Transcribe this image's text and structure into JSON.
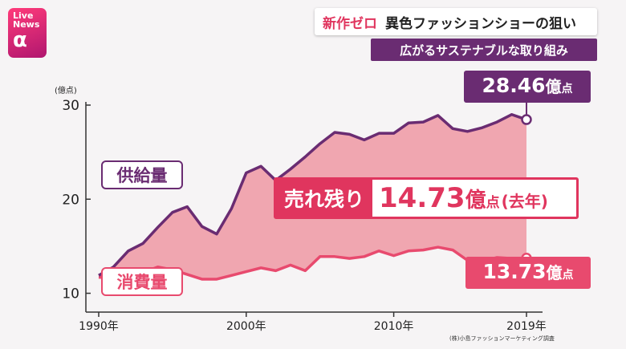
{
  "logo": {
    "line1": "Live",
    "line2": "News",
    "alpha": "α"
  },
  "header": {
    "title_red": "新作ゼロ",
    "title_black": "異色ファッションショーの狙い",
    "subtitle": "広がるサステナブルな取り組み"
  },
  "colors": {
    "supply": "#6a2c72",
    "consumption": "#e84a6e",
    "gap_fill": "#f0a6b0",
    "accent": "#e0355e"
  },
  "chart_data": {
    "type": "area",
    "ylabel": "(億点)",
    "ylim": [
      8,
      30
    ],
    "yticks": [
      10,
      20,
      30
    ],
    "xlim": [
      1990,
      2019
    ],
    "xtick_labels": [
      "1990年",
      "2000年",
      "2010年",
      "2019年"
    ],
    "x": [
      1990,
      1991,
      1992,
      1993,
      1994,
      1995,
      1996,
      1997,
      1998,
      1999,
      2000,
      2001,
      2002,
      2003,
      2004,
      2005,
      2006,
      2007,
      2008,
      2009,
      2010,
      2011,
      2012,
      2013,
      2014,
      2015,
      2016,
      2017,
      2018,
      2019
    ],
    "series": [
      {
        "name": "供給量",
        "values": [
          11.9,
          12.8,
          14.5,
          15.3,
          17.0,
          18.6,
          19.2,
          17.1,
          16.3,
          19.0,
          22.8,
          23.5,
          22.0,
          23.2,
          24.5,
          25.9,
          27.1,
          26.9,
          26.3,
          27.0,
          27.0,
          28.1,
          28.2,
          28.9,
          27.5,
          27.2,
          27.6,
          28.2,
          29.0,
          28.46
        ]
      },
      {
        "name": "消費量",
        "values": [
          11.7,
          11.6,
          11.9,
          12.2,
          12.8,
          12.5,
          12.0,
          11.5,
          11.5,
          11.9,
          12.3,
          12.7,
          12.4,
          13.0,
          12.4,
          13.9,
          13.9,
          13.7,
          13.9,
          14.5,
          14.0,
          14.5,
          14.6,
          14.9,
          14.6,
          13.5,
          13.4,
          13.8,
          13.7,
          13.73
        ]
      }
    ],
    "callouts": {
      "supply": {
        "value": "28.46",
        "unit1": "億",
        "unit2": "点"
      },
      "consumption": {
        "value": "13.73",
        "unit1": "億",
        "unit2": "点"
      }
    },
    "unsold": {
      "label": "売れ残り",
      "value": "14.73",
      "unit1": "億",
      "unit2": "点",
      "note": "(去年)"
    },
    "legend": {
      "supply_label": "供給量",
      "consumption_label": "消費量"
    }
  },
  "source": "(株)小島ファッションマーケティング調査"
}
